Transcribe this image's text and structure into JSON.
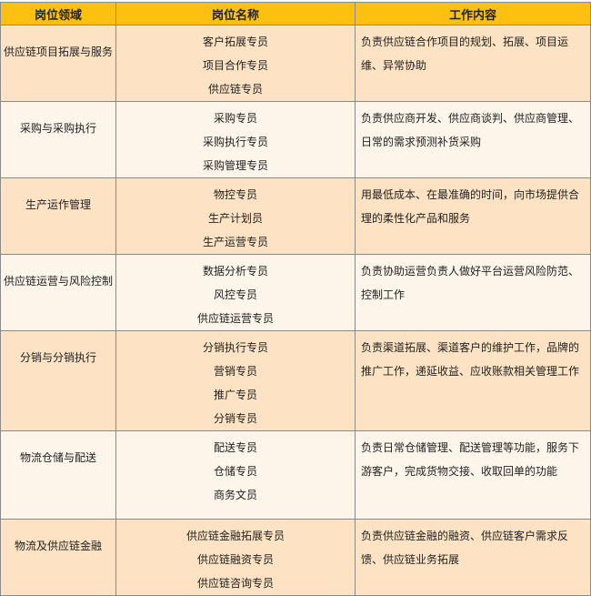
{
  "headers": [
    "岗位领域",
    "岗位名称",
    "工作内容"
  ],
  "rows": [
    {
      "area": "供应链项目拓展与服务",
      "positions": [
        "客户拓展专员",
        "项目合作专员",
        "供应链专员"
      ],
      "description": "负责供应链合作项目的规划、拓展、项目运维、异常协助"
    },
    {
      "area": "采购与采购执行",
      "positions": [
        "采购专员",
        "采购执行专员",
        "采购管理专员"
      ],
      "description": "负责供应商开发、供应商谈判、供应商管理、日常的需求预测补货采购"
    },
    {
      "area": "生产运作管理",
      "positions": [
        "物控专员",
        "生产计划员",
        "生产运营专员"
      ],
      "description": "用最低成本、在最准确的时间，向市场提供合理的柔性化产品和服务"
    },
    {
      "area": "供应链运营与风险控制",
      "positions": [
        "数据分析专员",
        "风控专员",
        "供应链运营专员"
      ],
      "description": "负责协助运营负责人做好平台运营风险防范、控制工作"
    },
    {
      "area": "分销与分销执行",
      "positions": [
        "分销执行专员",
        "营销专员",
        "推广专员",
        "分销专员"
      ],
      "description": "负责渠道拓展、渠道客户的维护工作，品牌的推广工作，递延收益、应收账款相关管理工作"
    },
    {
      "area": "物流仓储与配送",
      "positions": [
        "配送专员",
        "仓储专员",
        "商务文员"
      ],
      "description": "负责日常仓储管理、配送管理等功能，服务下游客户，完成货物交接、收取回单的功能"
    },
    {
      "area": "物流及供应链金融",
      "positions": [
        "供应链金融拓展专员",
        "供应链融资专员",
        "供应链咨询专员"
      ],
      "description": "负责供应链金融的融资、供应链客户需求反馈、供应链业务拓展"
    }
  ],
  "colors": {
    "header": "#fcc010",
    "row_odd": "#fde3c3",
    "row_even": "#fdf4ea"
  }
}
